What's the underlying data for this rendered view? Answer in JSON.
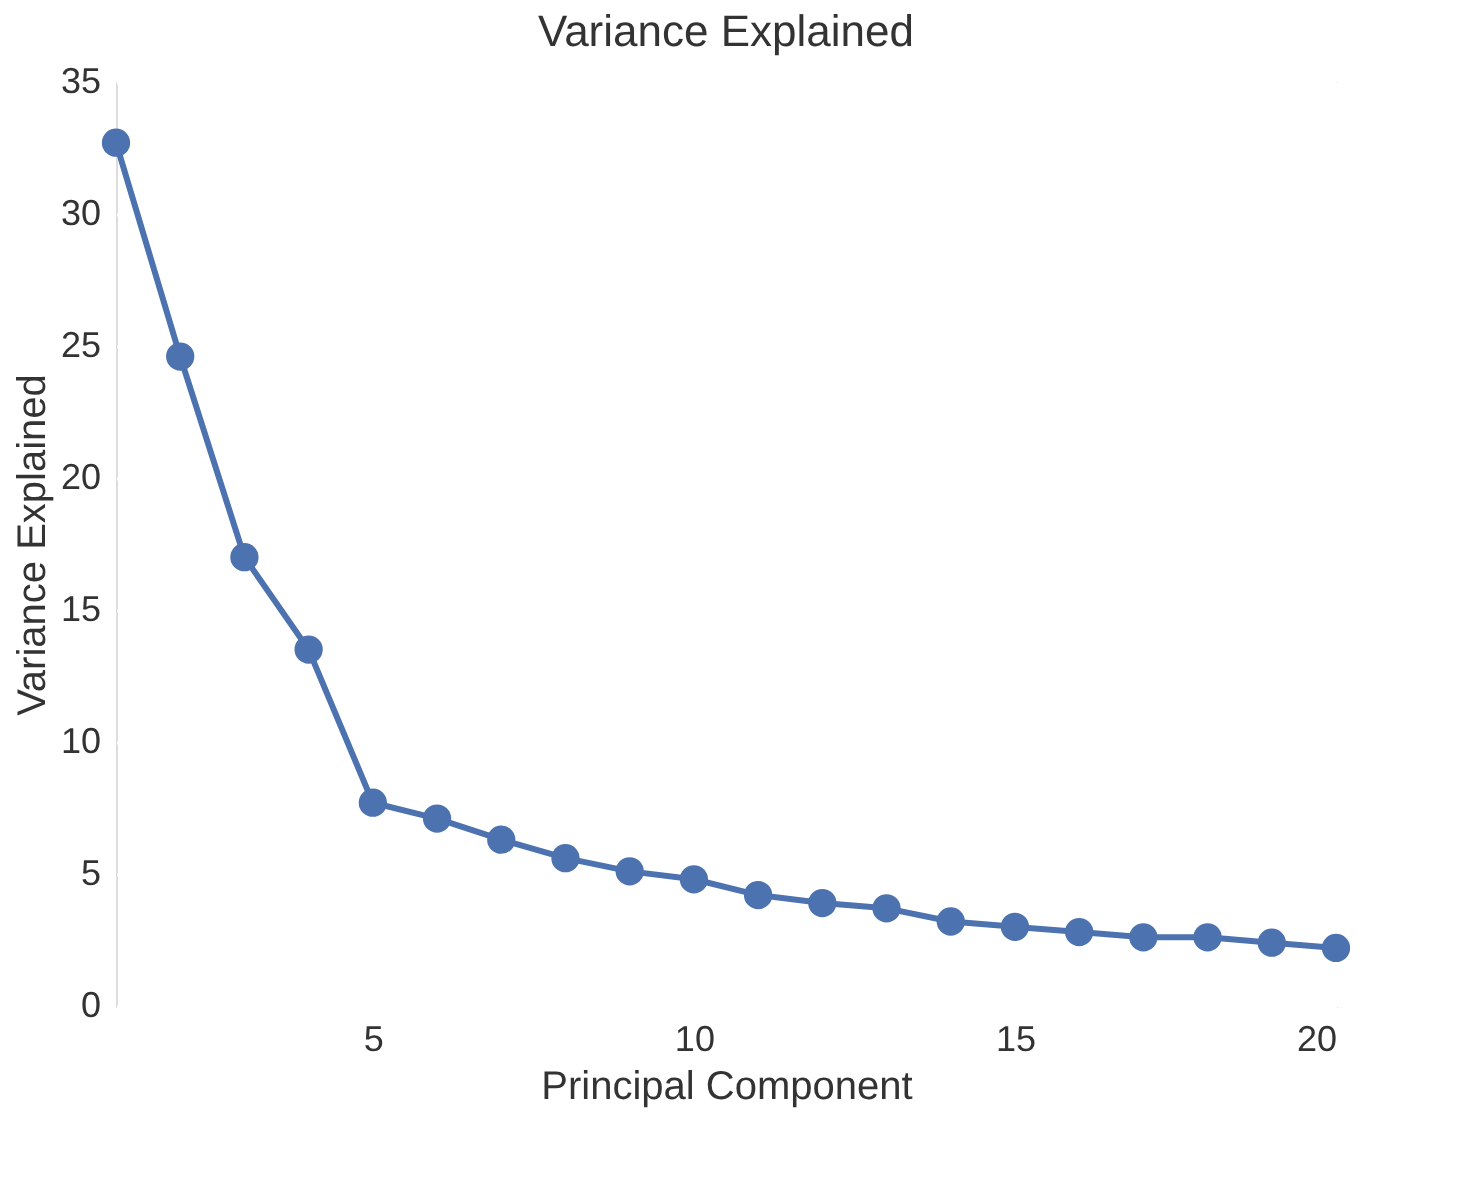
{
  "chart_data": {
    "type": "line",
    "title": "Variance Explained",
    "xlabel": "Principal Component",
    "ylabel": "Variance Explained",
    "x": [
      1,
      2,
      3,
      4,
      5,
      6,
      7,
      8,
      9,
      10,
      11,
      12,
      13,
      14,
      15,
      16,
      17,
      18,
      19,
      20
    ],
    "series": [
      {
        "color": "#4c72b0",
        "values": [
          32.7,
          24.6,
          17.0,
          13.5,
          7.7,
          7.1,
          6.3,
          5.6,
          5.1,
          4.8,
          4.2,
          3.9,
          3.7,
          3.2,
          3.0,
          2.8,
          2.6,
          2.6,
          2.4,
          2.2
        ]
      }
    ],
    "xlim": [
      1,
      20
    ],
    "xticks": [
      5,
      10,
      15,
      20
    ],
    "ylim": [
      0,
      35
    ],
    "yticks": [
      0,
      5,
      10,
      15,
      20,
      25,
      30,
      35
    ],
    "grid": true,
    "marker": "circle",
    "line_style": "solid"
  }
}
